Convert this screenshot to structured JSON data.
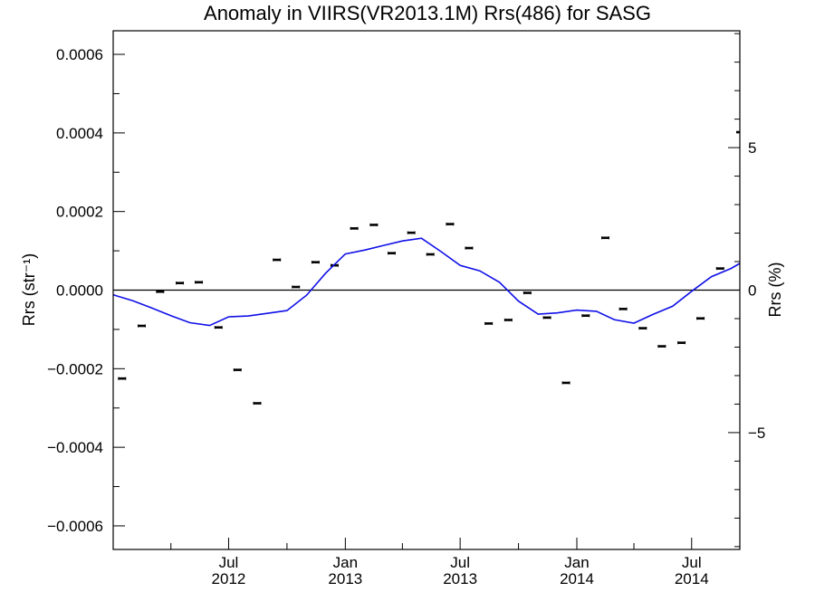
{
  "chart_data": {
    "type": "scatter",
    "title": "Anomaly in VIIRS(VR2013.1M) Rrs(486) for SASG",
    "ylabel_left": "Rrs (str⁻¹)",
    "ylabel_right": "Rrs (%)",
    "xlim": [
      "2012-01-01",
      "2014-09-15"
    ],
    "ylim_left": [
      -0.00066,
      0.00066
    ],
    "ylim_right": [
      -9.1,
      9.1
    ],
    "grid": false,
    "x_ticks": [
      {
        "date": "2012-07-01",
        "month": "Jul",
        "year": "2012"
      },
      {
        "date": "2013-01-01",
        "month": "Jan",
        "year": "2013"
      },
      {
        "date": "2013-07-01",
        "month": "Jul",
        "year": "2013"
      },
      {
        "date": "2014-01-01",
        "month": "Jan",
        "year": "2014"
      },
      {
        "date": "2014-07-01",
        "month": "Jul",
        "year": "2014"
      }
    ],
    "y_ticks_left": [
      {
        "value": 0.0006,
        "label": "0.0006"
      },
      {
        "value": 0.0004,
        "label": "0.0004"
      },
      {
        "value": 0.0002,
        "label": "0.0002"
      },
      {
        "value": 0.0,
        "label": "0.0000"
      },
      {
        "value": -0.0002,
        "label": "−0.0002"
      },
      {
        "value": -0.0004,
        "label": "−0.0004"
      },
      {
        "value": -0.0006,
        "label": "−0.0006"
      }
    ],
    "y_ticks_right": [
      {
        "value": 5,
        "label": "5"
      },
      {
        "value": 0,
        "label": "0"
      },
      {
        "value": -5,
        "label": "−5"
      }
    ],
    "reference_line": 0,
    "series": [
      {
        "kind": "points",
        "color": "#000000",
        "x": [
          "2012-01-15",
          "2012-02-15",
          "2012-03-15",
          "2012-04-15",
          "2012-05-15",
          "2012-06-15",
          "2012-07-15",
          "2012-08-15",
          "2012-09-15",
          "2012-10-15",
          "2012-11-15",
          "2012-12-15",
          "2013-01-15",
          "2013-02-15",
          "2013-03-15",
          "2013-04-15",
          "2013-05-15",
          "2013-06-15",
          "2013-07-15",
          "2013-08-15",
          "2013-09-15",
          "2013-10-15",
          "2013-11-15",
          "2013-12-15",
          "2014-01-15",
          "2014-02-15",
          "2014-03-15",
          "2014-04-15",
          "2014-05-15",
          "2014-06-15",
          "2014-07-15",
          "2014-08-15",
          "2014-09-15"
        ],
        "y": [
          -0.000225,
          -9.1e-05,
          -4e-06,
          1.8e-05,
          2e-05,
          -9.5e-05,
          -0.000203,
          -0.000288,
          7.7e-05,
          8e-06,
          7.1e-05,
          6.3e-05,
          0.000157,
          0.000166,
          9.4e-05,
          0.000146,
          9.1e-05,
          0.000168,
          0.000107,
          -8.5e-05,
          -7.6e-05,
          -7e-06,
          -7e-05,
          -0.000236,
          -6.5e-05,
          0.000133,
          -4.8e-05,
          -9.7e-05,
          -0.000143,
          -0.000134,
          -7.2e-05,
          5.5e-05,
          0.000402
        ]
      },
      {
        "kind": "line",
        "color": "#1010e8",
        "x": [
          "2012-01-01",
          "2012-02-01",
          "2012-03-01",
          "2012-04-01",
          "2012-05-01",
          "2012-06-01",
          "2012-07-01",
          "2012-08-01",
          "2012-09-01",
          "2012-10-01",
          "2012-11-01",
          "2012-12-01",
          "2013-01-01",
          "2013-02-01",
          "2013-03-01",
          "2013-04-01",
          "2013-05-01",
          "2013-06-01",
          "2013-07-01",
          "2013-08-01",
          "2013-09-01",
          "2013-10-01",
          "2013-11-01",
          "2013-12-01",
          "2014-01-01",
          "2014-02-01",
          "2014-03-01",
          "2014-04-01",
          "2014-05-01",
          "2014-06-01",
          "2014-07-01",
          "2014-08-01",
          "2014-09-01",
          "2014-09-15"
        ],
        "y": [
          -1.2e-05,
          -2.7e-05,
          -4.5e-05,
          -6.5e-05,
          -8.3e-05,
          -9e-05,
          -6.8e-05,
          -6.6e-05,
          -5.9e-05,
          -5.2e-05,
          -1.3e-05,
          4.3e-05,
          9.2e-05,
          0.000102,
          0.000113,
          0.000125,
          0.000132,
          9.8e-05,
          6.3e-05,
          4.9e-05,
          2e-05,
          -2.8e-05,
          -6.1e-05,
          -5.8e-05,
          -5.1e-05,
          -5.4e-05,
          -7.5e-05,
          -8.4e-05,
          -6.2e-05,
          -4.1e-05,
          -3e-06,
          3.4e-05,
          5.5e-05,
          6.8e-05
        ]
      }
    ]
  }
}
